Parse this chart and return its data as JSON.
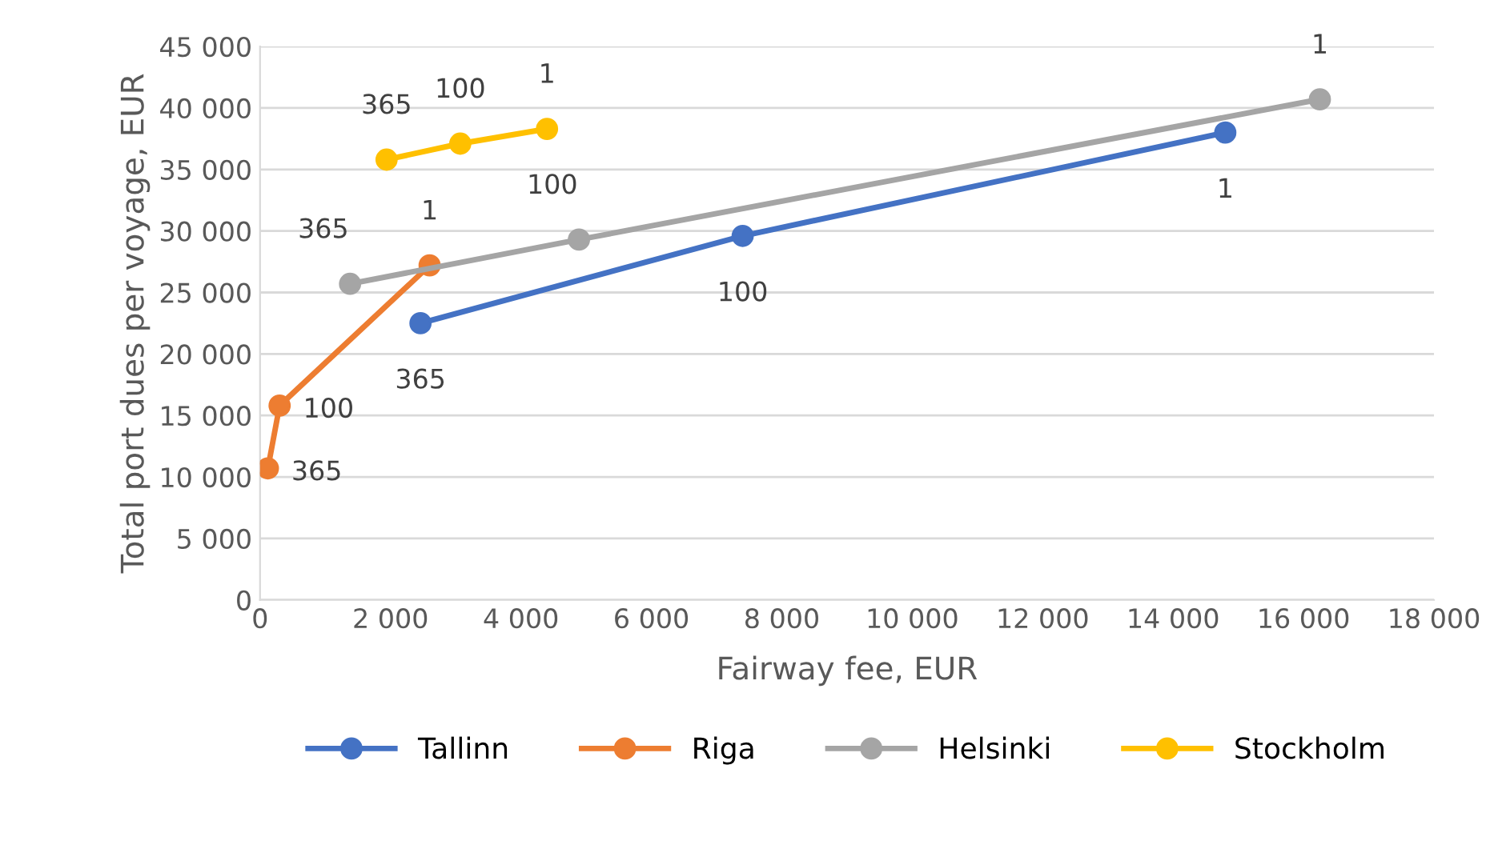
{
  "chart_data": {
    "type": "line",
    "xlabel": "Fairway fee, EUR",
    "ylabel": "Total port dues per voyage, EUR",
    "xlim": [
      0,
      18000
    ],
    "xticks": [
      {
        "value": 0,
        "label": "0"
      },
      {
        "value": 2000,
        "label": "2 000"
      },
      {
        "value": 4000,
        "label": "4 000"
      },
      {
        "value": 6000,
        "label": "6 000"
      },
      {
        "value": 8000,
        "label": "8 000"
      },
      {
        "value": 10000,
        "label": "10 000"
      },
      {
        "value": 12000,
        "label": "12 000"
      },
      {
        "value": 14000,
        "label": "14 000"
      },
      {
        "value": 16000,
        "label": "16 000"
      },
      {
        "value": 18000,
        "label": "18 000"
      }
    ],
    "ylim": [
      0,
      45000
    ],
    "yticks": [
      {
        "value": 0,
        "label": "0"
      },
      {
        "value": 5000,
        "label": "5 000"
      },
      {
        "value": 10000,
        "label": "10 000"
      },
      {
        "value": 15000,
        "label": "15 000"
      },
      {
        "value": 20000,
        "label": "20 000"
      },
      {
        "value": 25000,
        "label": "25 000"
      },
      {
        "value": 30000,
        "label": "30 000"
      },
      {
        "value": 35000,
        "label": "35 000"
      },
      {
        "value": 40000,
        "label": "40 000"
      },
      {
        "value": 45000,
        "label": "45 000"
      }
    ],
    "grid": "y",
    "legend": "bottom",
    "marker": "circle",
    "line_style": "solid",
    "series": [
      {
        "name": "Tallinn",
        "color": "#4472c4",
        "x": [
          2460,
          7400,
          14800
        ],
        "values": [
          22500,
          29600,
          38000
        ]
      },
      {
        "name": "Riga",
        "color": "#ed7d31",
        "x": [
          120,
          300,
          2600
        ],
        "values": [
          10700,
          15800,
          27200
        ]
      },
      {
        "name": "Helsinki",
        "color": "#a5a5a5",
        "x": [
          1380,
          4890,
          16250
        ],
        "values": [
          25700,
          29300,
          40700
        ]
      },
      {
        "name": "Stockholm",
        "color": "#ffc000",
        "x": [
          1940,
          3070,
          4400
        ],
        "values": [
          35800,
          37100,
          38300
        ]
      }
    ],
    "annotations": [
      {
        "text": "365",
        "x": 2460,
        "y": 22500
      },
      {
        "text": "100",
        "x": 7400,
        "y": 29600
      },
      {
        "text": "1",
        "x": 14800,
        "y": 38000
      },
      {
        "text": "365",
        "x": 120,
        "y": 10700
      },
      {
        "text": "100",
        "x": 300,
        "y": 15800
      },
      {
        "text": "1",
        "x": 2600,
        "y": 27200
      },
      {
        "text": "365",
        "x": 1380,
        "y": 25700
      },
      {
        "text": "100",
        "x": 4890,
        "y": 29300
      },
      {
        "text": "1",
        "x": 16250,
        "y": 40700
      },
      {
        "text": "365",
        "x": 1940,
        "y": 35800
      },
      {
        "text": "100",
        "x": 3070,
        "y": 37100
      },
      {
        "text": "1",
        "x": 4400,
        "y": 38300
      }
    ]
  }
}
